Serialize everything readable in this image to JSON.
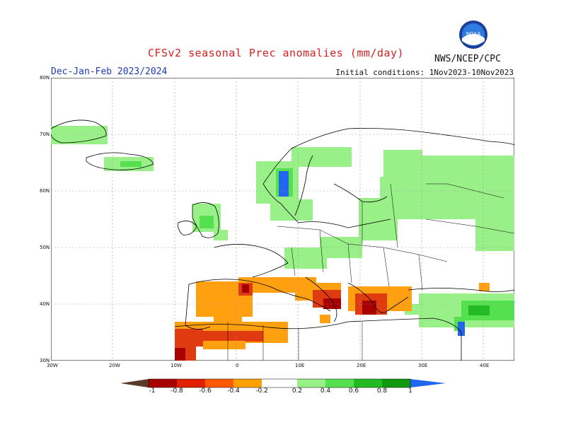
{
  "title": "CFSv2 seasonal Prec anomalies (mm/day)",
  "period": "Dec-Jan-Feb 2023/2024",
  "initial_conditions": "Initial conditions: 1Nov2023-10Nov2023",
  "agency": "NWS/NCEP/CPC",
  "logo_text": "NOAA",
  "lat_labels": [
    "80N",
    "70N",
    "60N",
    "50N",
    "40N",
    "30N"
  ],
  "lon_labels": [
    "30W",
    "20W",
    "10W",
    "0",
    "10E",
    "20E",
    "30E",
    "40E"
  ],
  "colorbar": {
    "labels": [
      "-1",
      "-0.8",
      "-0.6",
      "-0.4",
      "-0.2",
      "0.2",
      "0.4",
      "0.6",
      "0.8",
      "1"
    ],
    "colors": [
      "#5a3a2a",
      "#a80000",
      "#e02000",
      "#ff5a00",
      "#ffa000",
      "#ffffff",
      "#99f088",
      "#55e050",
      "#22bb22",
      "#119911",
      "#2266ee"
    ]
  },
  "colors": {
    "neg_strong": "#a80000",
    "neg_mid": "#e03a10",
    "neg_weak": "#ffa010",
    "pos_weak": "#99f088",
    "pos_mid": "#55e050",
    "pos_strong": "#22bb22",
    "pos_max": "#2266ee"
  }
}
